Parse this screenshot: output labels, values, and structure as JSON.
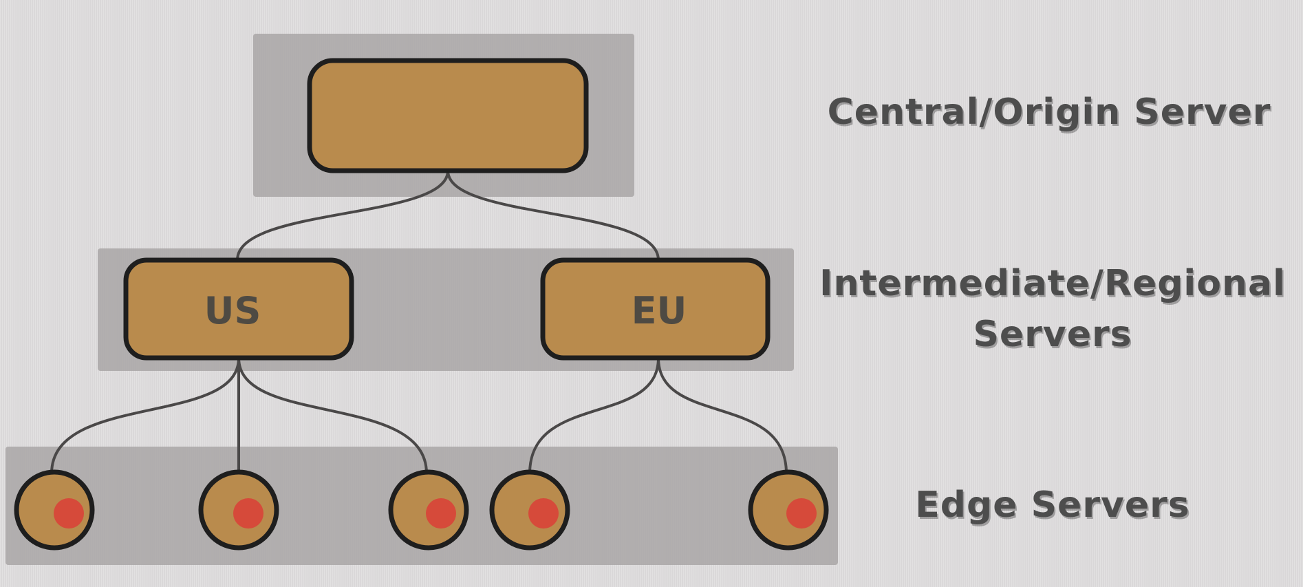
{
  "colors": {
    "background": "#dcdadb",
    "tier_band": "#a9a6a6",
    "node_fill": "#b98b4d",
    "node_stroke": "#1e1e1e",
    "connector": "#4a4848",
    "edge_dot": "#d64a3a",
    "label_text": "#4d4d4d"
  },
  "tiers": {
    "origin": {
      "label": "Central/Origin Server"
    },
    "regional": {
      "label_lines": [
        "Intermediate/Regional",
        "Servers"
      ]
    },
    "edge": {
      "label": "Edge Servers"
    }
  },
  "nodes": {
    "origin": {
      "label": ""
    },
    "regional_us": {
      "label": "US"
    },
    "regional_eu": {
      "label": "EU"
    }
  },
  "topology": {
    "origin_children": [
      "US",
      "EU"
    ],
    "US_edge_children": 3,
    "EU_edge_children": 2
  }
}
